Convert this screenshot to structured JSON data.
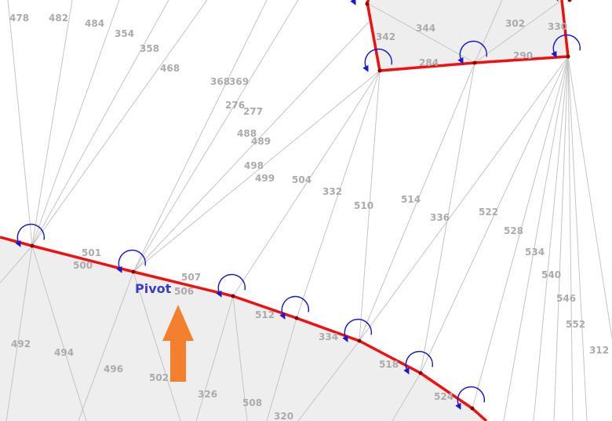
{
  "colors": {
    "background": "#ffffff",
    "region_fill": "#eeeeee",
    "mesh_line": "#c4c4c4",
    "edge_label": "#ababab",
    "boundary": "#ee1111",
    "vertex": "#8a0000",
    "rotation_arc": "#1a1acc",
    "pivot_label": "#3a3ad0",
    "arrow": "#f47f2f"
  },
  "pivot_label": "Pivot",
  "edge_labels": [
    "478",
    "482",
    "484",
    "354",
    "358",
    "468",
    "368",
    "369",
    "276",
    "277",
    "488",
    "489",
    "498",
    "499",
    "504",
    "332",
    "510",
    "514",
    "336",
    "522",
    "528",
    "534",
    "540",
    "546",
    "552",
    "312",
    "344",
    "342",
    "302",
    "330",
    "284",
    "290",
    "501",
    "500",
    "507",
    "506",
    "512",
    "334",
    "518",
    "524",
    "492",
    "494",
    "496",
    "502",
    "326",
    "508",
    "320"
  ],
  "icons": {
    "arrow": "up-arrow-icon",
    "rotation": "rotation-arc-icon"
  }
}
